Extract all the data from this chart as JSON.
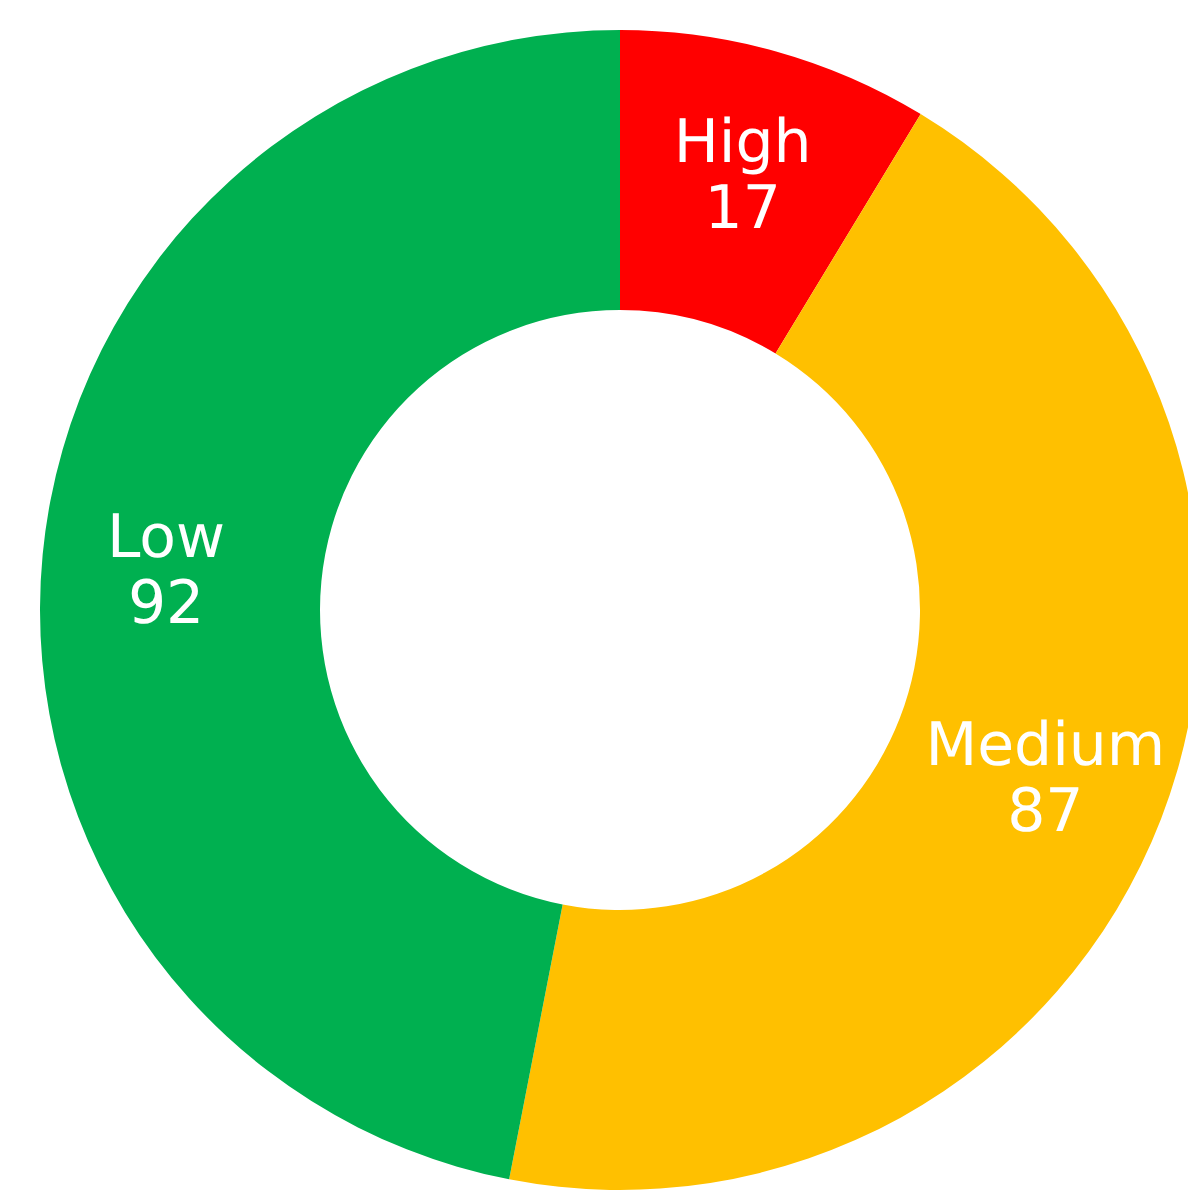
{
  "chart_data": {
    "type": "donut",
    "categories": [
      "High",
      "Medium",
      "Low"
    ],
    "values": [
      17,
      87,
      92
    ],
    "colors": [
      "#ff0000",
      "#ffc000",
      "#00b050"
    ],
    "data_labels": true
  }
}
